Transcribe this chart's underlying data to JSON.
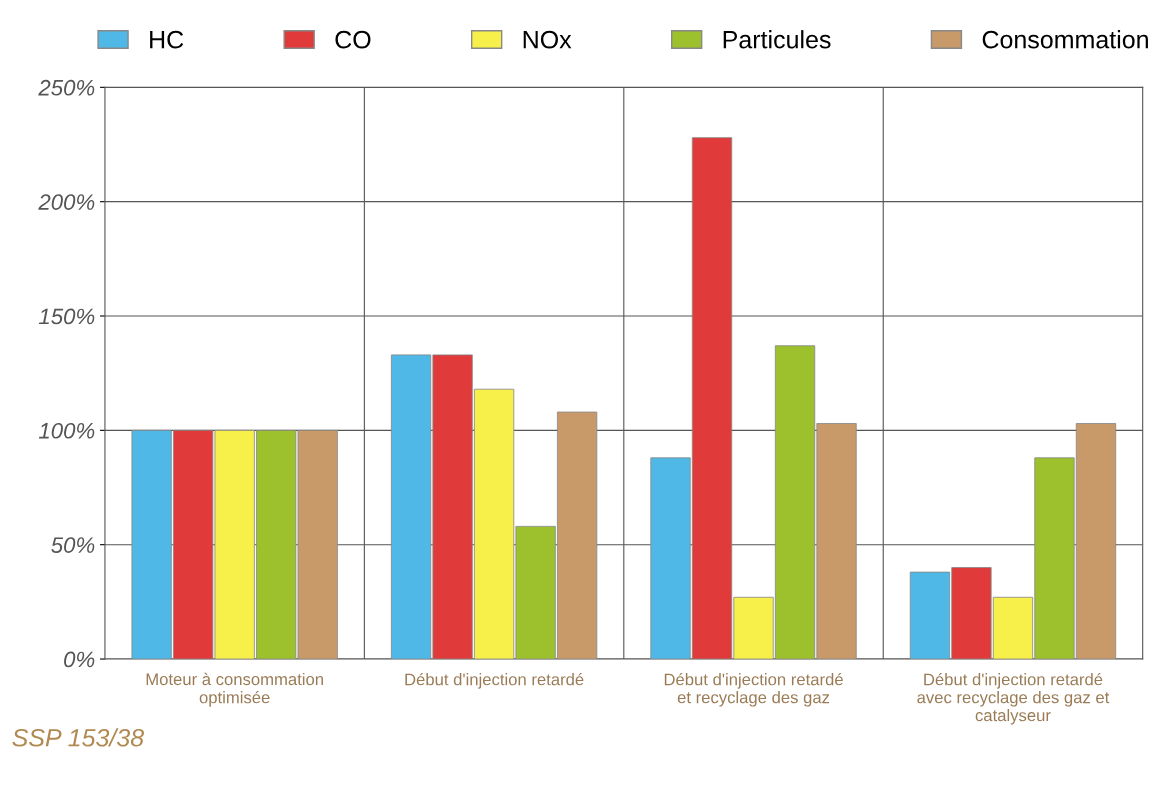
{
  "chart_data": {
    "type": "bar",
    "categories": [
      "Moteur à consommation\noptimisée",
      "Début d'injection retardé",
      "Début d'injection retardé\net recyclage des gaz",
      "Début d'injection retardé\navec recyclage des gaz et\ncatalyseur"
    ],
    "series": [
      {
        "name": "HC",
        "color": "#4fb8e6",
        "values": [
          100,
          133,
          88,
          38
        ]
      },
      {
        "name": "CO",
        "color": "#e03a3a",
        "values": [
          100,
          133,
          228,
          40
        ]
      },
      {
        "name": "NOx",
        "color": "#f7f04a",
        "values": [
          100,
          118,
          27,
          27
        ]
      },
      {
        "name": "Particules",
        "color": "#9cc12c",
        "values": [
          100,
          58,
          137,
          88
        ]
      },
      {
        "name": "Consommation",
        "color": "#c89a6a",
        "values": [
          100,
          108,
          103,
          103
        ]
      }
    ],
    "ylim": [
      0,
      250
    ],
    "yticks": [
      {
        "value": 0,
        "label": "0%"
      },
      {
        "value": 50,
        "label": "50%"
      },
      {
        "value": 100,
        "label": "100%"
      },
      {
        "value": 150,
        "label": "150%"
      },
      {
        "value": 200,
        "label": "200%"
      },
      {
        "value": 250,
        "label": "250%"
      }
    ],
    "grid": "y",
    "legend": "top",
    "annotations": [
      "SSP 153/38"
    ]
  }
}
